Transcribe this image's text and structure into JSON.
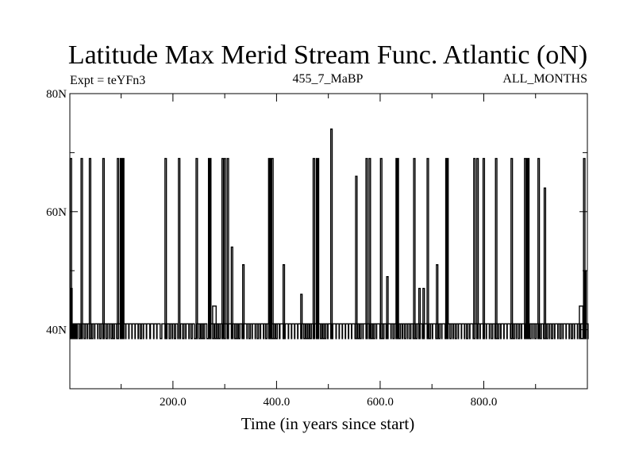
{
  "chart_data": {
    "type": "line",
    "title": "Latitude Max Merid Stream Func. Atlantic (oN)",
    "subtitle_left": "Expt = teYFn3",
    "subtitle_center": "455_7_MaBP",
    "subtitle_right": "ALL_MONTHS",
    "xlabel": "Time (in years since start)",
    "ylabel": "",
    "xlim": [
      1,
      1000
    ],
    "ylim": [
      30,
      80
    ],
    "x_ticks": [
      {
        "value": 200,
        "label": "200.0"
      },
      {
        "value": 400,
        "label": "400.0"
      },
      {
        "value": 600,
        "label": "600.0"
      },
      {
        "value": 800,
        "label": "800.0"
      }
    ],
    "y_ticks": [
      {
        "value": 40,
        "label": "40N"
      },
      {
        "value": 60,
        "label": "60N"
      },
      {
        "value": 80,
        "label": "80N"
      }
    ],
    "baseline": 38.5,
    "series": [
      {
        "color": "#000000",
        "spikes": [
          [
            3,
            69
          ],
          [
            4,
            47
          ],
          [
            6,
            41
          ],
          [
            8,
            41
          ],
          [
            10,
            41
          ],
          [
            12,
            41
          ],
          [
            18,
            41
          ],
          [
            22,
            41
          ],
          [
            24,
            69
          ],
          [
            28,
            41
          ],
          [
            32,
            41
          ],
          [
            38,
            41
          ],
          [
            40,
            69
          ],
          [
            42,
            41
          ],
          [
            46,
            41
          ],
          [
            52,
            41
          ],
          [
            58,
            41
          ],
          [
            62,
            41
          ],
          [
            66,
            69
          ],
          [
            70,
            41
          ],
          [
            74,
            41
          ],
          [
            80,
            41
          ],
          [
            84,
            41
          ],
          [
            88,
            41
          ],
          [
            94,
            69
          ],
          [
            96,
            41
          ],
          [
            100,
            69
          ],
          [
            102,
            69
          ],
          [
            104,
            69
          ],
          [
            106,
            41
          ],
          [
            112,
            41
          ],
          [
            118,
            41
          ],
          [
            124,
            41
          ],
          [
            130,
            41
          ],
          [
            136,
            41
          ],
          [
            140,
            41
          ],
          [
            146,
            41
          ],
          [
            152,
            41
          ],
          [
            160,
            41
          ],
          [
            166,
            41
          ],
          [
            172,
            41
          ],
          [
            182,
            41
          ],
          [
            186,
            69
          ],
          [
            192,
            41
          ],
          [
            196,
            41
          ],
          [
            202,
            41
          ],
          [
            206,
            41
          ],
          [
            212,
            69
          ],
          [
            218,
            41
          ],
          [
            222,
            41
          ],
          [
            228,
            41
          ],
          [
            234,
            41
          ],
          [
            238,
            41
          ],
          [
            246,
            69
          ],
          [
            250,
            41
          ],
          [
            254,
            41
          ],
          [
            258,
            41
          ],
          [
            262,
            41
          ],
          [
            270,
            69
          ],
          [
            272,
            69
          ],
          [
            276,
            41
          ],
          [
            280,
            44
          ],
          [
            284,
            41
          ],
          [
            288,
            41
          ],
          [
            292,
            41
          ],
          [
            296,
            69
          ],
          [
            300,
            69
          ],
          [
            302,
            41
          ],
          [
            306,
            69
          ],
          [
            310,
            41
          ],
          [
            314,
            54
          ],
          [
            318,
            41
          ],
          [
            322,
            41
          ],
          [
            326,
            41
          ],
          [
            330,
            41
          ],
          [
            336,
            51
          ],
          [
            340,
            41
          ],
          [
            346,
            41
          ],
          [
            350,
            41
          ],
          [
            356,
            41
          ],
          [
            362,
            41
          ],
          [
            366,
            41
          ],
          [
            372,
            41
          ],
          [
            378,
            41
          ],
          [
            382,
            41
          ],
          [
            386,
            69
          ],
          [
            388,
            69
          ],
          [
            390,
            41
          ],
          [
            392,
            69
          ],
          [
            394,
            41
          ],
          [
            398,
            41
          ],
          [
            402,
            41
          ],
          [
            410,
            41
          ],
          [
            414,
            51
          ],
          [
            420,
            41
          ],
          [
            426,
            41
          ],
          [
            432,
            41
          ],
          [
            438,
            41
          ],
          [
            444,
            41
          ],
          [
            448,
            46
          ],
          [
            452,
            41
          ],
          [
            456,
            41
          ],
          [
            460,
            41
          ],
          [
            464,
            41
          ],
          [
            468,
            41
          ],
          [
            472,
            69
          ],
          [
            474,
            41
          ],
          [
            478,
            69
          ],
          [
            480,
            69
          ],
          [
            484,
            41
          ],
          [
            488,
            41
          ],
          [
            492,
            41
          ],
          [
            496,
            41
          ],
          [
            502,
            41
          ],
          [
            506,
            74
          ],
          [
            512,
            41
          ],
          [
            518,
            41
          ],
          [
            524,
            41
          ],
          [
            530,
            41
          ],
          [
            536,
            41
          ],
          [
            542,
            41
          ],
          [
            548,
            41
          ],
          [
            554,
            66
          ],
          [
            556,
            41
          ],
          [
            560,
            41
          ],
          [
            564,
            41
          ],
          [
            570,
            41
          ],
          [
            574,
            69
          ],
          [
            576,
            41
          ],
          [
            580,
            69
          ],
          [
            582,
            41
          ],
          [
            586,
            41
          ],
          [
            590,
            41
          ],
          [
            596,
            41
          ],
          [
            602,
            69
          ],
          [
            604,
            41
          ],
          [
            608,
            41
          ],
          [
            614,
            49
          ],
          [
            618,
            41
          ],
          [
            624,
            41
          ],
          [
            628,
            41
          ],
          [
            632,
            69
          ],
          [
            634,
            69
          ],
          [
            636,
            41
          ],
          [
            640,
            41
          ],
          [
            646,
            41
          ],
          [
            650,
            41
          ],
          [
            656,
            41
          ],
          [
            660,
            41
          ],
          [
            666,
            69
          ],
          [
            668,
            41
          ],
          [
            672,
            41
          ],
          [
            676,
            47
          ],
          [
            678,
            41
          ],
          [
            684,
            47
          ],
          [
            688,
            41
          ],
          [
            692,
            69
          ],
          [
            694,
            41
          ],
          [
            698,
            41
          ],
          [
            704,
            41
          ],
          [
            710,
            51
          ],
          [
            712,
            41
          ],
          [
            716,
            41
          ],
          [
            722,
            41
          ],
          [
            728,
            69
          ],
          [
            730,
            69
          ],
          [
            734,
            41
          ],
          [
            738,
            41
          ],
          [
            744,
            41
          ],
          [
            748,
            41
          ],
          [
            754,
            41
          ],
          [
            760,
            41
          ],
          [
            766,
            41
          ],
          [
            770,
            41
          ],
          [
            776,
            41
          ],
          [
            782,
            69
          ],
          [
            784,
            41
          ],
          [
            788,
            69
          ],
          [
            790,
            41
          ],
          [
            796,
            41
          ],
          [
            800,
            69
          ],
          [
            802,
            41
          ],
          [
            808,
            41
          ],
          [
            814,
            41
          ],
          [
            818,
            41
          ],
          [
            824,
            69
          ],
          [
            826,
            41
          ],
          [
            830,
            41
          ],
          [
            836,
            41
          ],
          [
            842,
            41
          ],
          [
            848,
            41
          ],
          [
            854,
            69
          ],
          [
            856,
            41
          ],
          [
            860,
            41
          ],
          [
            866,
            41
          ],
          [
            870,
            41
          ],
          [
            876,
            41
          ],
          [
            880,
            69
          ],
          [
            884,
            69
          ],
          [
            886,
            69
          ],
          [
            888,
            41
          ],
          [
            892,
            41
          ],
          [
            898,
            41
          ],
          [
            902,
            41
          ],
          [
            906,
            69
          ],
          [
            908,
            41
          ],
          [
            912,
            41
          ],
          [
            918,
            64
          ],
          [
            920,
            41
          ],
          [
            924,
            41
          ],
          [
            930,
            41
          ],
          [
            934,
            41
          ],
          [
            940,
            41
          ],
          [
            946,
            41
          ],
          [
            950,
            41
          ],
          [
            956,
            41
          ],
          [
            962,
            41
          ],
          [
            968,
            41
          ],
          [
            972,
            41
          ],
          [
            978,
            41
          ],
          [
            984,
            41
          ],
          [
            988,
            44
          ],
          [
            990,
            41
          ],
          [
            994,
            69
          ],
          [
            996,
            50
          ],
          [
            998,
            41
          ]
        ]
      }
    ]
  }
}
